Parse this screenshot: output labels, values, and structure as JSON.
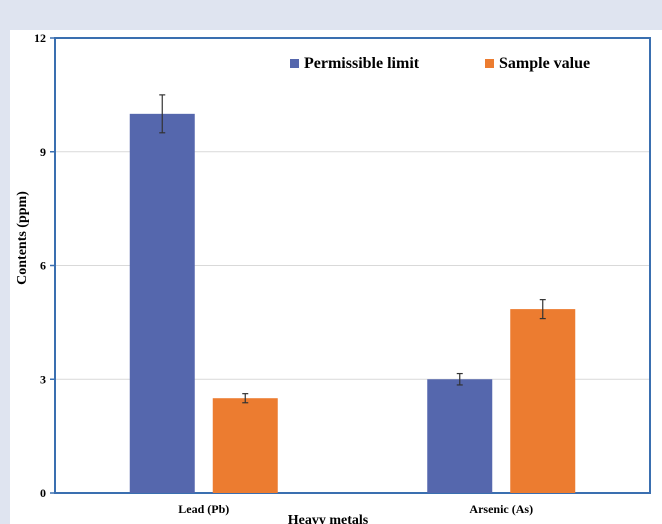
{
  "chart_data": {
    "type": "bar",
    "categories": [
      "Lead (Pb)",
      "Arsenic (As)"
    ],
    "series": [
      {
        "name": "Permissible limit",
        "values": [
          10,
          3
        ],
        "errors": [
          0.5,
          0.15
        ]
      },
      {
        "name": "Sample value",
        "values": [
          2.5,
          4.85
        ],
        "errors": [
          0.12,
          0.25
        ]
      }
    ],
    "colors": {
      "Permissible limit": "#5567ad",
      "Sample value": "#ec7c30"
    },
    "xlabel": "Heavy metals",
    "ylabel": "Contents (ppm)",
    "ylim": [
      0,
      12
    ],
    "yticks": [
      0,
      3,
      6,
      9,
      12
    ],
    "grid": true,
    "legend": "top-right"
  }
}
